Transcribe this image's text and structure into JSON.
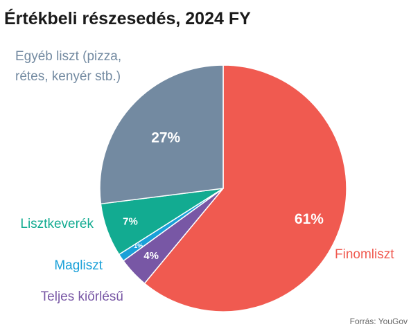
{
  "chart_data": {
    "type": "pie",
    "title": "Értékbeli részesedés, 2024 FY",
    "slices": [
      {
        "label": "Finomliszt",
        "value": 61,
        "value_label": "61%",
        "color": "#f05a50"
      },
      {
        "label": "Teljes kiőrlésű",
        "value": 4,
        "value_label": "4%",
        "color": "#7857a5"
      },
      {
        "label": "Magliszt",
        "value": 1,
        "value_label": "1%",
        "color": "#19a0d8"
      },
      {
        "label": "Lisztkeverék",
        "value": 7,
        "value_label": "7%",
        "color": "#12ab91"
      },
      {
        "label": "Egyéb liszt (pizza,\nrétes, kenyér stb.)",
        "value": 27,
        "value_label": "27%",
        "color": "#738aa1"
      }
    ],
    "start_angle": "12 o'clock",
    "direction": "clockwise",
    "source": "Forrás: YouGov"
  }
}
